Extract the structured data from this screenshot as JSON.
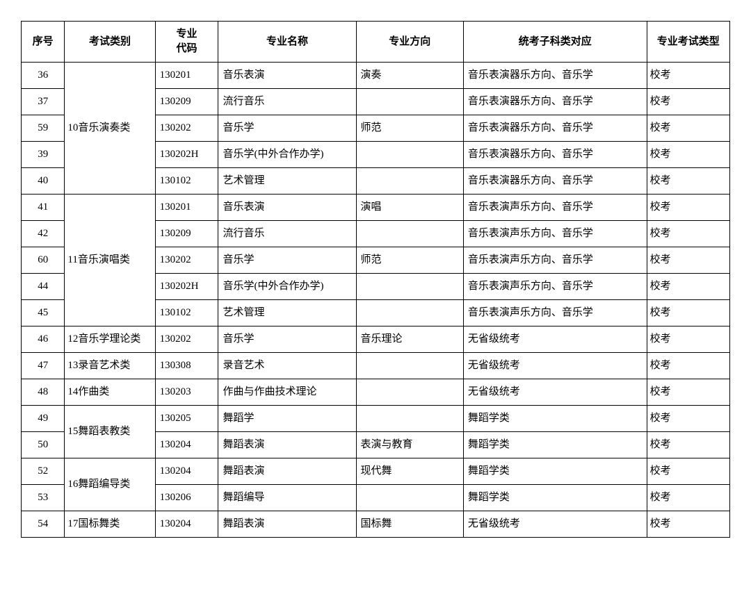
{
  "table": {
    "type": "table",
    "border_color": "#000000",
    "background_color": "#ffffff",
    "text_color": "#000000",
    "font_family": "SimSun",
    "header_fontsize": 15,
    "cell_fontsize": 15,
    "columns": [
      {
        "key": "seq",
        "label": "序号",
        "align": "center"
      },
      {
        "key": "category",
        "label": "考试类别",
        "align": "center"
      },
      {
        "key": "code",
        "label": "专业\n代码",
        "align": "center"
      },
      {
        "key": "name",
        "label": "专业名称",
        "align": "center"
      },
      {
        "key": "direction",
        "label": "专业方向",
        "align": "center"
      },
      {
        "key": "subject",
        "label": "统考子科类对应",
        "align": "center"
      },
      {
        "key": "examtype",
        "label": "专业考试类型",
        "align": "center"
      }
    ],
    "groups": [
      {
        "category": "10音乐演奏类",
        "rows": [
          {
            "seq": "36",
            "code": "130201",
            "name": "音乐表演",
            "direction": "演奏",
            "subject": "音乐表演器乐方向、音乐学",
            "examtype": "校考"
          },
          {
            "seq": "37",
            "code": "130209",
            "name": "流行音乐",
            "direction": "",
            "subject": "音乐表演器乐方向、音乐学",
            "examtype": "校考"
          },
          {
            "seq": "59",
            "code": "130202",
            "name": "音乐学",
            "direction": "师范",
            "subject": "音乐表演器乐方向、音乐学",
            "examtype": "校考"
          },
          {
            "seq": "39",
            "code": "130202H",
            "name": "音乐学(中外合作办学)",
            "direction": "",
            "subject": "音乐表演器乐方向、音乐学",
            "examtype": "校考"
          },
          {
            "seq": "40",
            "code": "130102",
            "name": "艺术管理",
            "direction": "",
            "subject": "音乐表演器乐方向、音乐学",
            "examtype": "校考"
          }
        ]
      },
      {
        "category": "11音乐演唱类",
        "rows": [
          {
            "seq": "41",
            "code": "130201",
            "name": "音乐表演",
            "direction": "演唱",
            "subject": "音乐表演声乐方向、音乐学",
            "examtype": "校考"
          },
          {
            "seq": "42",
            "code": "130209",
            "name": "流行音乐",
            "direction": "",
            "subject": "音乐表演声乐方向、音乐学",
            "examtype": "校考"
          },
          {
            "seq": "60",
            "code": "130202",
            "name": "音乐学",
            "direction": "师范",
            "subject": "音乐表演声乐方向、音乐学",
            "examtype": "校考"
          },
          {
            "seq": "44",
            "code": "130202H",
            "name": "音乐学(中外合作办学)",
            "direction": "",
            "subject": "音乐表演声乐方向、音乐学",
            "examtype": "校考"
          },
          {
            "seq": "45",
            "code": "130102",
            "name": "艺术管理",
            "direction": "",
            "subject": "音乐表演声乐方向、音乐学",
            "examtype": "校考"
          }
        ]
      },
      {
        "category": "12音乐学理论类",
        "rows": [
          {
            "seq": "46",
            "code": "130202",
            "name": "音乐学",
            "direction": "音乐理论",
            "subject": "无省级统考",
            "examtype": "校考"
          }
        ]
      },
      {
        "category": "13录音艺术类",
        "rows": [
          {
            "seq": "47",
            "code": "130308",
            "name": "录音艺术",
            "direction": "",
            "subject": "无省级统考",
            "examtype": "校考"
          }
        ]
      },
      {
        "category": "14作曲类",
        "rows": [
          {
            "seq": "48",
            "code": "130203",
            "name": "作曲与作曲技术理论",
            "direction": "",
            "subject": "无省级统考",
            "examtype": "校考"
          }
        ]
      },
      {
        "category": "15舞蹈表教类",
        "rows": [
          {
            "seq": "49",
            "code": "130205",
            "name": "舞蹈学",
            "direction": "",
            "subject": "舞蹈学类",
            "examtype": "校考"
          },
          {
            "seq": "50",
            "code": "130204",
            "name": "舞蹈表演",
            "direction": "表演与教育",
            "subject": "舞蹈学类",
            "examtype": "校考"
          }
        ]
      },
      {
        "category": "16舞蹈编导类",
        "rows": [
          {
            "seq": "52",
            "code": "130204",
            "name": "舞蹈表演",
            "direction": "现代舞",
            "subject": "舞蹈学类",
            "examtype": "校考"
          },
          {
            "seq": "53",
            "code": "130206",
            "name": "舞蹈编导",
            "direction": "",
            "subject": "舞蹈学类",
            "examtype": "校考"
          }
        ]
      },
      {
        "category": "17国标舞类",
        "rows": [
          {
            "seq": "54",
            "code": "130204",
            "name": "舞蹈表演",
            "direction": "国标舞",
            "subject": "无省级统考",
            "examtype": "校考"
          }
        ]
      }
    ]
  }
}
